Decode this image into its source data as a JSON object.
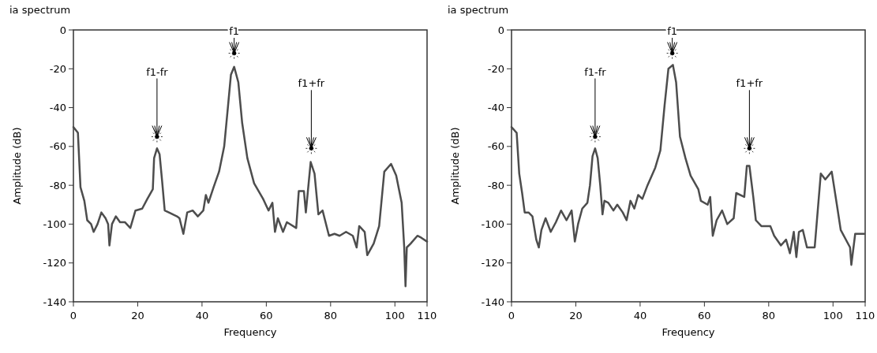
{
  "chart_data": [
    {
      "type": "line",
      "title": "ia spectrum",
      "xlabel": "Frequency",
      "ylabel": "Amplitude (dB)",
      "xlim": [
        0,
        110
      ],
      "ylim": [
        -140,
        0
      ],
      "xticks": [
        0,
        20,
        40,
        60,
        80,
        100,
        110
      ],
      "yticks": [
        -140,
        -120,
        -100,
        -80,
        -60,
        -40,
        -20,
        0
      ],
      "grid": false,
      "annotations": [
        {
          "text": "f1-fr",
          "x": 26,
          "y": -55
        },
        {
          "text": "f1",
          "x": 50,
          "y": -12
        },
        {
          "text": "f1+fr",
          "x": 74,
          "y": -61
        }
      ],
      "series": [
        {
          "color": "#4d4d4d",
          "x": [
            0,
            1.4,
            2.2,
            3.4,
            4.3,
            5.5,
            6.3,
            7.5,
            8.7,
            10,
            10.8,
            11.2,
            12,
            13.2,
            14.5,
            16,
            17.7,
            19.3,
            21.4,
            23,
            24.7,
            25.1,
            26,
            26.8,
            27.6,
            28.4,
            29.7,
            32.2,
            33,
            34.2,
            35.4,
            37.1,
            38.7,
            40.4,
            41.2,
            42,
            43.6,
            45.3,
            46.9,
            48.1,
            49,
            50,
            51.3,
            52.5,
            54.1,
            56.2,
            59,
            60.7,
            61.9,
            62.7,
            63.6,
            65.2,
            66.4,
            69.3,
            70.1,
            71.7,
            72.3,
            73.8,
            75,
            76.2,
            77.5,
            79.5,
            81.2,
            82.8,
            84.8,
            86.9,
            88.1,
            88.9,
            90.6,
            91.4,
            93.4,
            95.1,
            96.7,
            98.8,
            100.4,
            102.1,
            102.9,
            103.3,
            103.7,
            104.9,
            107,
            108.2,
            110
          ],
          "values": [
            -50,
            -53,
            -81,
            -88,
            -98,
            -100,
            -104,
            -100,
            -94,
            -97,
            -100,
            -111,
            -100,
            -96,
            -99,
            -99,
            -102,
            -93,
            -92,
            -87,
            -82,
            -66,
            -61,
            -64,
            -78,
            -93,
            -94,
            -96,
            -97,
            -105,
            -94,
            -93,
            -96,
            -93,
            -85,
            -89,
            -81,
            -73,
            -60,
            -39,
            -23,
            -19,
            -27,
            -48,
            -66,
            -79,
            -87,
            -93,
            -89,
            -104,
            -97,
            -104,
            -99,
            -102,
            -83,
            -83,
            -94,
            -68,
            -74,
            -95,
            -93,
            -106,
            -105,
            -106,
            -104,
            -106,
            -112,
            -101,
            -104,
            -116,
            -110,
            -101,
            -73,
            -69,
            -75,
            -89,
            -112,
            -132,
            -112,
            -110,
            -106,
            -107,
            -109
          ]
        }
      ]
    },
    {
      "type": "line",
      "title": "ia spectrum",
      "xlabel": "Frequency",
      "ylabel": "Amplitude (dB)",
      "xlim": [
        0,
        110
      ],
      "ylim": [
        -140,
        0
      ],
      "xticks": [
        0,
        20,
        40,
        60,
        80,
        100,
        110
      ],
      "yticks": [
        -140,
        -120,
        -100,
        -80,
        -60,
        -40,
        -20,
        0
      ],
      "grid": false,
      "annotations": [
        {
          "text": "f1-fr",
          "x": 26,
          "y": -55
        },
        {
          "text": "f1",
          "x": 50,
          "y": -12
        },
        {
          "text": "f1+fr",
          "x": 74,
          "y": -61
        }
      ],
      "series": [
        {
          "color": "#4d4d4d",
          "x": [
            0,
            1.6,
            2.4,
            3.3,
            4.1,
            5.3,
            6.5,
            7.7,
            8.5,
            9.3,
            10.6,
            12.2,
            13.8,
            15.4,
            17.1,
            18.7,
            19.7,
            20.7,
            22,
            23.6,
            24.4,
            25.2,
            26,
            26.8,
            27.6,
            28.3,
            28.9,
            30.1,
            31.7,
            32.9,
            34.6,
            35.8,
            37,
            38.2,
            39.4,
            40.7,
            42.3,
            44.7,
            46.3,
            47.6,
            48.8,
            50.2,
            51.2,
            52.4,
            54.1,
            55.7,
            58.1,
            58.9,
            61,
            61.8,
            62.6,
            63.8,
            65.5,
            67.1,
            69.1,
            69.9,
            72.4,
            73.2,
            74,
            75.2,
            76,
            77.7,
            80.5,
            81.7,
            83.8,
            85.4,
            86.6,
            87.8,
            88.6,
            89.4,
            90.6,
            91.9,
            94.3,
            96.2,
            97.6,
            99.6,
            101.2,
            102.4,
            105.3,
            105.7,
            106.9,
            109.8
          ],
          "values": [
            -50,
            -53,
            -74,
            -84,
            -94,
            -94,
            -96,
            -108,
            -112,
            -103,
            -97,
            -104,
            -99,
            -93,
            -98,
            -93,
            -109,
            -100,
            -92,
            -89,
            -80,
            -65,
            -61,
            -66,
            -80,
            -95,
            -88,
            -89,
            -93,
            -90,
            -94,
            -98,
            -88,
            -92,
            -85,
            -87,
            -80,
            -71,
            -62,
            -39,
            -20,
            -18,
            -27,
            -55,
            -66,
            -75,
            -82,
            -88,
            -90,
            -86,
            -106,
            -98,
            -93,
            -100,
            -97,
            -84,
            -86,
            -70,
            -70,
            -86,
            -98,
            -101,
            -101,
            -106,
            -111,
            -108,
            -115,
            -104,
            -117,
            -104,
            -103,
            -112,
            -112,
            -74,
            -77,
            -73,
            -90,
            -103,
            -112,
            -121,
            -105,
            -105
          ]
        }
      ]
    }
  ]
}
